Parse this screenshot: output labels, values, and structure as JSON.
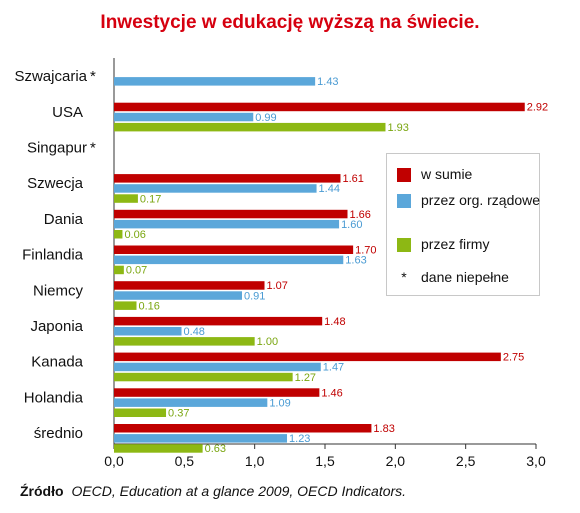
{
  "chart_data": {
    "type": "bar",
    "orientation": "horizontal",
    "title": "Inwestycje w edukację wyższą na świecie.",
    "categories": [
      "Szwajcaria *",
      "USA",
      "Singapur *",
      "Szwecja",
      "Dania",
      "Finlandia",
      "Niemcy",
      "Japonia",
      "Kanada",
      "Holandia",
      "średnio"
    ],
    "series": [
      {
        "name": "w sumie",
        "color": "#c00000",
        "label_color": "#c00000",
        "values": [
          null,
          2.92,
          null,
          1.61,
          1.66,
          1.7,
          1.07,
          1.48,
          2.75,
          1.46,
          1.83
        ],
        "labels": [
          "",
          "2.92",
          "",
          "1.61",
          "1.66",
          "1.70",
          "1.07",
          "1.48",
          "2.75",
          "1.46",
          "1.83"
        ]
      },
      {
        "name": "przez org. rządowe",
        "color": "#5ba7da",
        "label_color": "#4a9bd3",
        "values": [
          1.43,
          0.99,
          null,
          1.44,
          1.6,
          1.63,
          0.91,
          0.48,
          1.47,
          1.09,
          1.23
        ],
        "labels": [
          "1.43",
          "0.99",
          "",
          "1.44",
          "1.60",
          "1.63",
          "0.91",
          "0.48",
          "1.47",
          "1.09",
          "1.23"
        ]
      },
      {
        "name": "przez firmy",
        "color": "#8db814",
        "label_color": "#7aa610",
        "values": [
          null,
          1.93,
          null,
          0.17,
          0.06,
          0.07,
          0.16,
          1.0,
          1.27,
          0.37,
          0.63
        ],
        "labels": [
          "",
          "1.93",
          "",
          "0.17",
          "0.06",
          "0.07",
          "0.16",
          "1.00",
          "1.27",
          "0.37",
          "0.63"
        ]
      }
    ],
    "xlim": [
      0,
      3.0
    ],
    "xticks": [
      "0,0",
      "0,5",
      "1,0",
      "1,5",
      "2,0",
      "2,5",
      "3,0"
    ],
    "xtick_values": [
      0,
      0.5,
      1.0,
      1.5,
      2.0,
      2.5,
      3.0
    ],
    "grid": false,
    "legend_position": "right",
    "legend_note": {
      "symbol": "*",
      "text": "dane niepełne"
    }
  },
  "source": {
    "label": "Źródło",
    "text": "OECD, Education at a glance 2009, OECD Indicators."
  }
}
